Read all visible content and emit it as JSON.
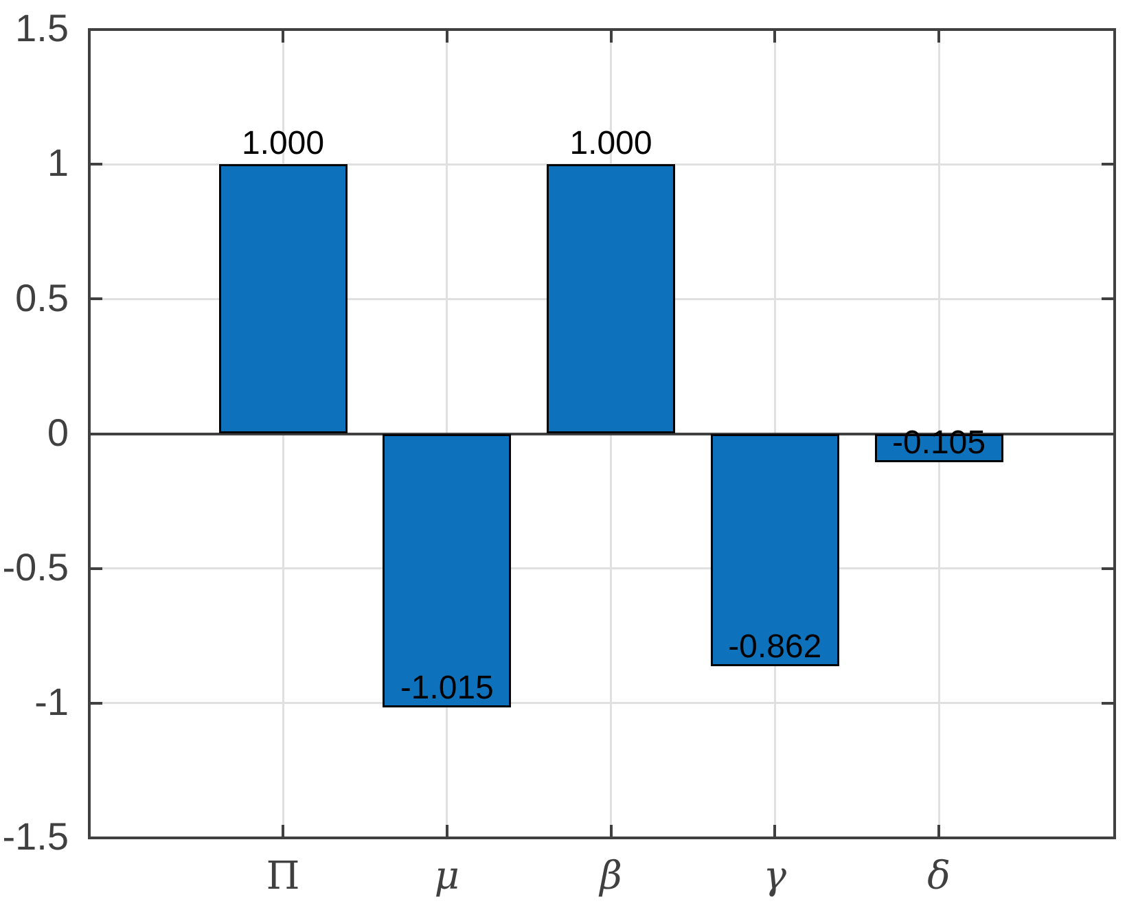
{
  "figure": {
    "background": "#ffffff"
  },
  "chart_data": {
    "type": "bar",
    "categories": [
      "Π",
      "μ",
      "β",
      "γ",
      "δ"
    ],
    "values": [
      1.0,
      -1.015,
      1.0,
      -0.862,
      -0.105
    ],
    "bar_labels": [
      "1.000",
      "-1.015",
      "1.000",
      "-0.862",
      "-0.105"
    ],
    "title": "",
    "xlabel": "",
    "ylabel": "",
    "ylim": [
      -1.5,
      1.5
    ],
    "yticks": [
      -1.5,
      -1,
      -0.5,
      0,
      0.5,
      1,
      1.5
    ],
    "ytick_labels": [
      "-1.5",
      "-1",
      "-0.5",
      "0",
      "0.5",
      "1",
      "1.5"
    ],
    "grid": true,
    "legend_position": "none",
    "colors": {
      "bar_fill": "#0d72bb",
      "bar_edge": "#000000",
      "axis": "#404040",
      "grid": "#e0e0e0",
      "value_label_text": "#000000",
      "tick_label_text": "#404040"
    }
  }
}
